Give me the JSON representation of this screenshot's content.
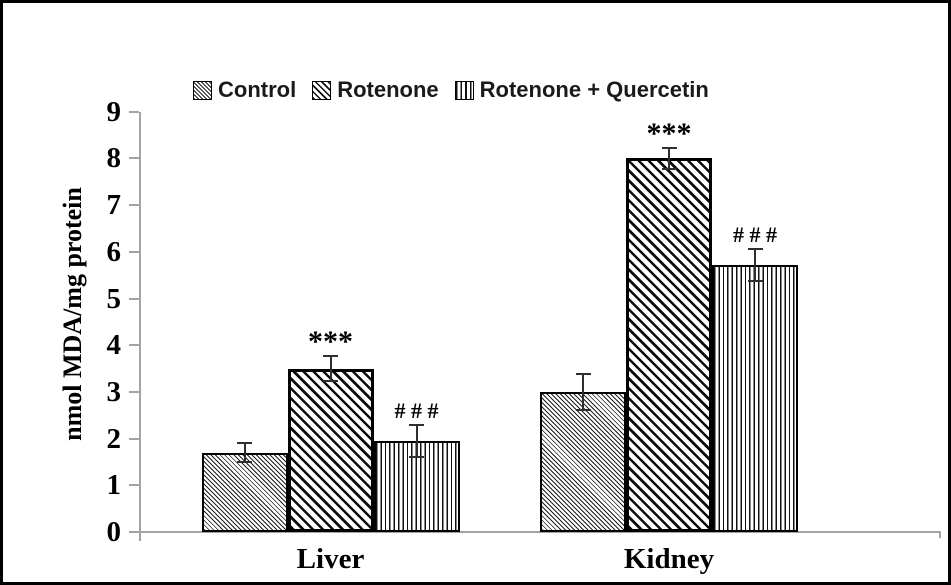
{
  "figure": {
    "background": "#ffffff",
    "frame_color": "#000000"
  },
  "colors": {
    "axis": "#a3a3a3",
    "bar_fill": "#ffffff",
    "bar_border": "#000000",
    "hatch": "#111111",
    "error_bar": "#2e2e2e",
    "tick_text": "#000000",
    "legend_text": "#1a1a1a"
  },
  "chart_data": {
    "type": "bar",
    "title": "",
    "xlabel": "",
    "ylabel": "nmol MDA/mg protein",
    "ylim": [
      0,
      9
    ],
    "yticks": [
      0,
      1,
      2,
      3,
      4,
      5,
      6,
      7,
      8,
      9
    ],
    "grid": false,
    "legend_position": "top",
    "error_bars": true,
    "categories": [
      "Liver",
      "Kidney"
    ],
    "series": [
      {
        "name": "Control",
        "pattern": "diagonal-fine",
        "values": [
          1.7,
          3.0
        ],
        "errors": [
          0.2,
          0.38
        ],
        "annotations": [
          "",
          ""
        ]
      },
      {
        "name": "Rotenone",
        "pattern": "diagonal-bold",
        "values": [
          3.5,
          8.0
        ],
        "errors": [
          0.27,
          0.22
        ],
        "annotations": [
          "***",
          "***"
        ]
      },
      {
        "name": "Rotenone + Quercetin",
        "pattern": "vertical",
        "values": [
          1.95,
          5.72
        ],
        "errors": [
          0.35,
          0.34
        ],
        "annotations": [
          "# # #",
          "# # #"
        ]
      }
    ]
  }
}
